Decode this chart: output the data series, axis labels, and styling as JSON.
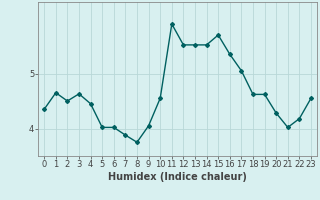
{
  "xlabel": "Humidex (Indice chaleur)",
  "ylabel": "",
  "x": [
    0,
    1,
    2,
    3,
    4,
    5,
    6,
    7,
    8,
    9,
    10,
    11,
    12,
    13,
    14,
    15,
    16,
    17,
    18,
    19,
    20,
    21,
    22,
    23
  ],
  "y": [
    4.35,
    4.65,
    4.5,
    4.63,
    4.45,
    4.02,
    4.02,
    3.88,
    3.75,
    4.05,
    4.55,
    5.9,
    5.52,
    5.52,
    5.52,
    5.7,
    5.35,
    5.05,
    4.62,
    4.62,
    4.28,
    4.02,
    4.18,
    4.55
  ],
  "line_color": "#006060",
  "marker": "D",
  "marker_size": 2,
  "bg_color": "#d8f0f0",
  "grid_color": "#b8d8d8",
  "tick_color": "#444444",
  "ylim": [
    3.5,
    6.3
  ],
  "xlim": [
    -0.5,
    23.5
  ],
  "yticks": [
    4,
    5
  ],
  "xticks": [
    0,
    1,
    2,
    3,
    4,
    5,
    6,
    7,
    8,
    9,
    10,
    11,
    12,
    13,
    14,
    15,
    16,
    17,
    18,
    19,
    20,
    21,
    22,
    23
  ],
  "fontsize_xlabel": 7,
  "fontsize_tick": 6,
  "linewidth": 1.0
}
